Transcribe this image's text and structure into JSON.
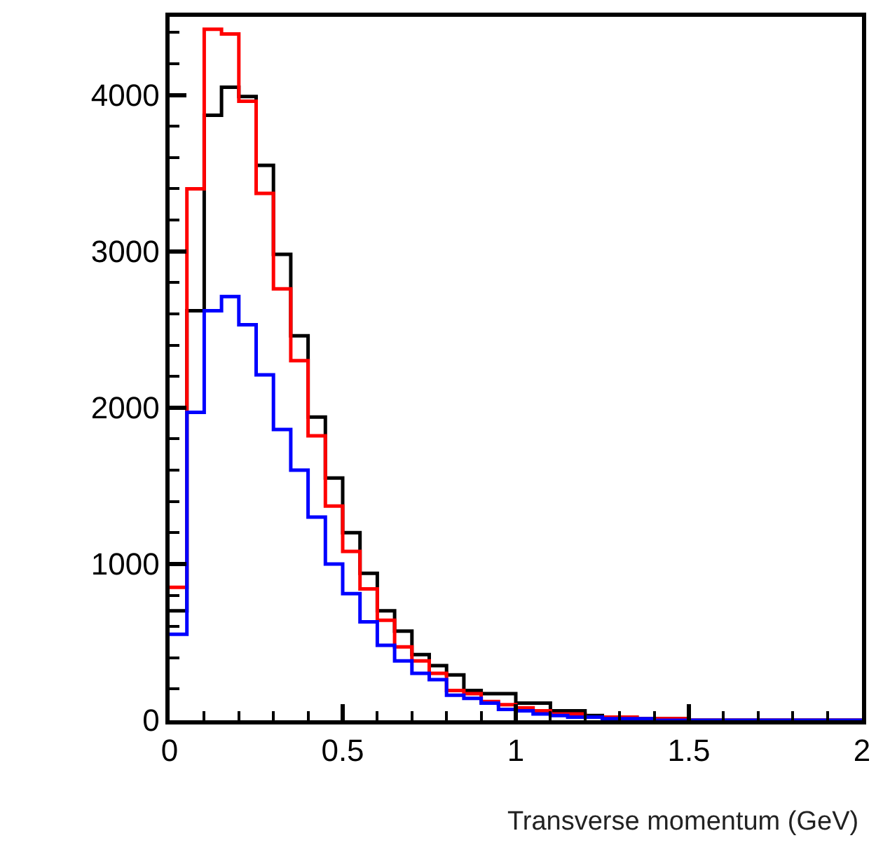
{
  "chart_data": {
    "type": "histogram",
    "xlabel": "Transverse momentum (GeV)",
    "bins": [
      0,
      0.05,
      0.1,
      0.15,
      0.2,
      0.25,
      0.3,
      0.35,
      0.4,
      0.45,
      0.5,
      0.55,
      0.6,
      0.65,
      0.7,
      0.75,
      0.8,
      0.85,
      0.9,
      0.95,
      1,
      1.05,
      1.1,
      1.15,
      1.2,
      1.25,
      1.3,
      1.35,
      1.4,
      1.45,
      1.5,
      1.55,
      1.6,
      1.65,
      1.7,
      1.75,
      1.8,
      1.85,
      1.9,
      1.95,
      2
    ],
    "series": [
      {
        "color": "#000000",
        "values": [
          700,
          2620,
          3870,
          4050,
          3990,
          3550,
          2980,
          2460,
          1940,
          1550,
          1200,
          940,
          700,
          570,
          420,
          350,
          290,
          190,
          170,
          170,
          110,
          110,
          60,
          60,
          30,
          20,
          20,
          10,
          10,
          10,
          0,
          0,
          0,
          0,
          0,
          0,
          0,
          0,
          0,
          0
        ]
      },
      {
        "color": "#ff0000",
        "values": [
          850,
          3400,
          4420,
          4390,
          3960,
          3370,
          2760,
          2300,
          1820,
          1370,
          1080,
          840,
          640,
          470,
          380,
          300,
          190,
          170,
          120,
          100,
          80,
          60,
          40,
          40,
          20,
          20,
          20,
          10,
          10,
          10,
          0,
          0,
          0,
          0,
          0,
          0,
          0,
          0,
          0,
          0
        ]
      },
      {
        "color": "#0000ff",
        "values": [
          550,
          1970,
          2620,
          2710,
          2530,
          2210,
          1860,
          1600,
          1300,
          1000,
          810,
          630,
          480,
          380,
          300,
          260,
          160,
          140,
          110,
          70,
          60,
          40,
          30,
          20,
          20,
          10,
          10,
          10,
          0,
          0,
          0,
          0,
          0,
          0,
          0,
          0,
          0,
          0,
          0,
          0
        ]
      }
    ],
    "xlim": [
      0,
      2
    ],
    "xticks": [
      0,
      0.5,
      1,
      1.5,
      2
    ],
    "ylim": [
      0,
      4500
    ],
    "yticks": [
      0,
      1000,
      2000,
      3000,
      4000
    ]
  }
}
